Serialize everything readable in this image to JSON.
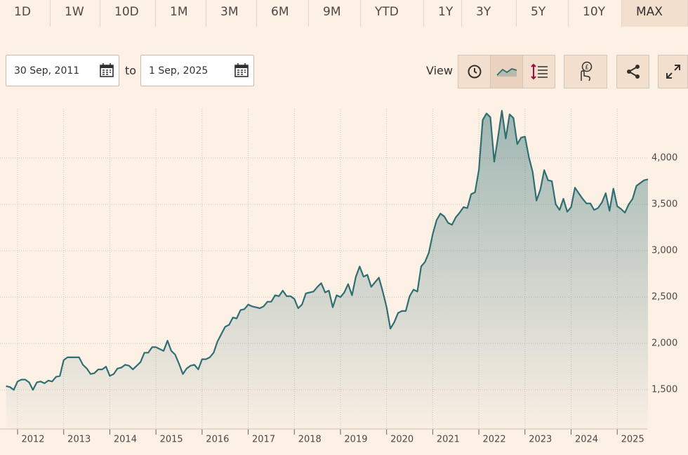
{
  "toolbar": {
    "ranges": [
      "1D",
      "1W",
      "10D",
      "1M",
      "3M",
      "6M",
      "9M",
      "YTD",
      "1Y",
      "3Y",
      "5Y",
      "10Y",
      "MAX"
    ],
    "selected": "MAX"
  },
  "date_range": {
    "from": "30 Sep, 2011",
    "separator": "to",
    "to": "1 Sep, 2025"
  },
  "view_label": "View",
  "chart_data": {
    "type": "area",
    "x": [
      "2011-10",
      "2011-11",
      "2011-12",
      "2012-01",
      "2012-02",
      "2012-03",
      "2012-04",
      "2012-05",
      "2012-06",
      "2012-07",
      "2012-08",
      "2012-09",
      "2012-10",
      "2012-11",
      "2012-12",
      "2013-01",
      "2013-02",
      "2013-03",
      "2013-04",
      "2013-05",
      "2013-06",
      "2013-07",
      "2013-08",
      "2013-09",
      "2013-10",
      "2013-11",
      "2013-12",
      "2014-01",
      "2014-02",
      "2014-03",
      "2014-04",
      "2014-05",
      "2014-06",
      "2014-07",
      "2014-08",
      "2014-09",
      "2014-10",
      "2014-11",
      "2014-12",
      "2015-01",
      "2015-02",
      "2015-03",
      "2015-04",
      "2015-05",
      "2015-06",
      "2015-07",
      "2015-08",
      "2015-09",
      "2015-10",
      "2015-11",
      "2015-12",
      "2016-01",
      "2016-02",
      "2016-03",
      "2016-04",
      "2016-05",
      "2016-06",
      "2016-07",
      "2016-08",
      "2016-09",
      "2016-10",
      "2016-11",
      "2016-12",
      "2017-01",
      "2017-02",
      "2017-03",
      "2017-04",
      "2017-05",
      "2017-06",
      "2017-07",
      "2017-08",
      "2017-09",
      "2017-10",
      "2017-11",
      "2017-12",
      "2018-01",
      "2018-02",
      "2018-03",
      "2018-04",
      "2018-05",
      "2018-06",
      "2018-07",
      "2018-08",
      "2018-09",
      "2018-10",
      "2018-11",
      "2018-12",
      "2019-01",
      "2019-02",
      "2019-03",
      "2019-04",
      "2019-05",
      "2019-06",
      "2019-07",
      "2019-08",
      "2019-09",
      "2019-10",
      "2019-11",
      "2019-12",
      "2020-01",
      "2020-02",
      "2020-03",
      "2020-04",
      "2020-05",
      "2020-06",
      "2020-07",
      "2020-08",
      "2020-09",
      "2020-10",
      "2020-11",
      "2020-12",
      "2021-01",
      "2021-02",
      "2021-03",
      "2021-04",
      "2021-05",
      "2021-06",
      "2021-07",
      "2021-08",
      "2021-09",
      "2021-10",
      "2021-11",
      "2021-12",
      "2022-01",
      "2022-02",
      "2022-03",
      "2022-04",
      "2022-05",
      "2022-06",
      "2022-07",
      "2022-08",
      "2022-09",
      "2022-10",
      "2022-11",
      "2022-12",
      "2023-01",
      "2023-02",
      "2023-03",
      "2023-04",
      "2023-05",
      "2023-06",
      "2023-07",
      "2023-08",
      "2023-09",
      "2023-10",
      "2023-11",
      "2023-12",
      "2024-01",
      "2024-02",
      "2024-03",
      "2024-04",
      "2024-05",
      "2024-06",
      "2024-07",
      "2024-08",
      "2024-09",
      "2024-10",
      "2024-11",
      "2024-12",
      "2025-01",
      "2025-02",
      "2025-03",
      "2025-04",
      "2025-05",
      "2025-06",
      "2025-07",
      "2025-08",
      "2025-09"
    ],
    "values": [
      1540,
      1530,
      1500,
      1590,
      1610,
      1610,
      1580,
      1500,
      1580,
      1590,
      1570,
      1600,
      1590,
      1640,
      1650,
      1820,
      1850,
      1850,
      1850,
      1850,
      1770,
      1730,
      1670,
      1680,
      1720,
      1720,
      1750,
      1650,
      1670,
      1730,
      1740,
      1770,
      1760,
      1720,
      1760,
      1800,
      1900,
      1900,
      1960,
      1960,
      1940,
      1920,
      2030,
      1920,
      1880,
      1780,
      1670,
      1730,
      1760,
      1770,
      1720,
      1830,
      1830,
      1850,
      1900,
      2020,
      2100,
      2180,
      2200,
      2280,
      2270,
      2360,
      2370,
      2420,
      2400,
      2390,
      2380,
      2400,
      2450,
      2450,
      2520,
      2510,
      2570,
      2510,
      2510,
      2480,
      2380,
      2420,
      2540,
      2550,
      2560,
      2610,
      2650,
      2550,
      2570,
      2390,
      2520,
      2500,
      2550,
      2640,
      2520,
      2720,
      2830,
      2720,
      2740,
      2610,
      2660,
      2710,
      2560,
      2390,
      2160,
      2230,
      2330,
      2350,
      2350,
      2510,
      2580,
      2560,
      2830,
      2880,
      2980,
      3180,
      3330,
      3400,
      3370,
      3300,
      3280,
      3360,
      3410,
      3470,
      3460,
      3610,
      3630,
      3870,
      4410,
      4480,
      4440,
      3960,
      4230,
      4510,
      4210,
      4470,
      4430,
      4150,
      4220,
      4230,
      4010,
      3850,
      3540,
      3660,
      3870,
      3760,
      3750,
      3500,
      3440,
      3560,
      3420,
      3470,
      3680,
      3620,
      3560,
      3510,
      3510,
      3440,
      3460,
      3520,
      3620,
      3430,
      3670,
      3480,
      3450,
      3410,
      3500,
      3560,
      3700,
      3730,
      3760,
      3770
    ],
    "color": "#2f6f73",
    "xlim": [
      "2011-10",
      "2025-09"
    ],
    "xticks": [
      2012,
      2013,
      2014,
      2015,
      2016,
      2017,
      2018,
      2019,
      2020,
      2021,
      2022,
      2023,
      2024,
      2025
    ],
    "ylim": [
      1100,
      4530
    ],
    "yticks": [
      {
        "value": 1500,
        "label": "1,500"
      },
      {
        "value": 2000,
        "label": "2,000"
      },
      {
        "value": 2500,
        "label": "2,500"
      },
      {
        "value": 3000,
        "label": "3,000"
      },
      {
        "value": 3500,
        "label": "3,500"
      },
      {
        "value": 4000,
        "label": "4,000"
      }
    ],
    "grid": true
  }
}
